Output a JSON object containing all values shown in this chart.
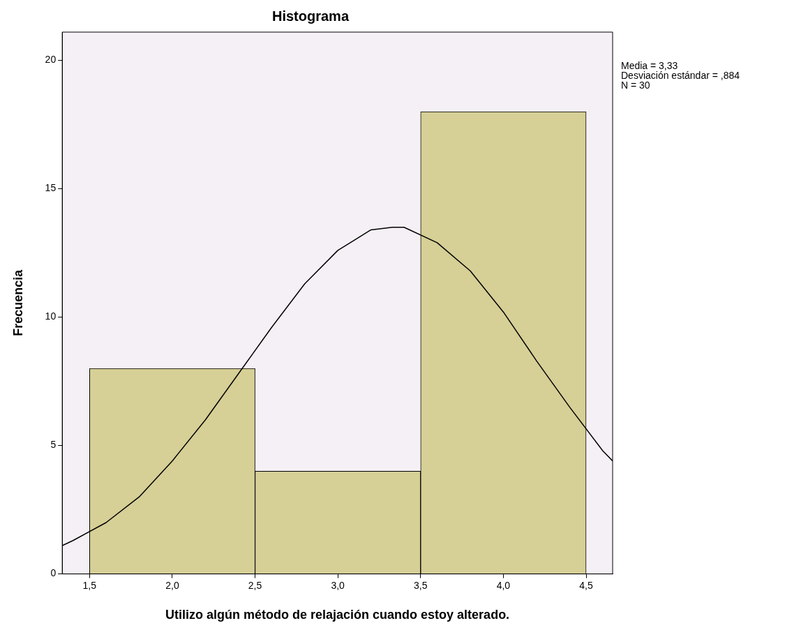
{
  "chart_data": {
    "type": "histogram",
    "title": "Histograma",
    "xlabel": "Utilizo algún método de relajación cuando estoy alterado.",
    "ylabel": "Frecuencia",
    "bins": [
      1.5,
      2.5,
      3.5,
      4.5
    ],
    "values": [
      8,
      4,
      18
    ],
    "color": "#d6cf96",
    "series": [
      {
        "type": "line",
        "color": "#000000",
        "x": [
          1.335,
          1.4,
          1.6,
          1.8,
          2.0,
          2.2,
          2.4,
          2.6,
          2.8,
          3.0,
          3.2,
          3.33,
          3.4,
          3.6,
          3.8,
          4.0,
          4.2,
          4.4,
          4.6,
          4.66
        ],
        "values": [
          1.1,
          1.3,
          2.0,
          3.0,
          4.4,
          6.0,
          7.8,
          9.6,
          11.3,
          12.6,
          13.4,
          13.5,
          13.5,
          12.9,
          11.8,
          10.2,
          8.3,
          6.5,
          4.8,
          4.4
        ]
      }
    ],
    "marker": "none",
    "line_style": "solid",
    "xlim": [
      1.335,
      4.66
    ],
    "ylim": [
      0,
      21.1
    ],
    "xticks": [
      {
        "value": 1.5,
        "label": "1,5"
      },
      {
        "value": 2,
        "label": "2,0"
      },
      {
        "value": 2.5,
        "label": "2,5"
      },
      {
        "value": 3,
        "label": "3,0"
      },
      {
        "value": 3.5,
        "label": "3,5"
      },
      {
        "value": 4,
        "label": "4,0"
      },
      {
        "value": 4.5,
        "label": "4,5"
      }
    ],
    "yticks": [
      0,
      5,
      10,
      15,
      20
    ],
    "annotations": [
      "Media = 3,33",
      "Desviación estándar = ,884",
      "N = 30"
    ]
  }
}
